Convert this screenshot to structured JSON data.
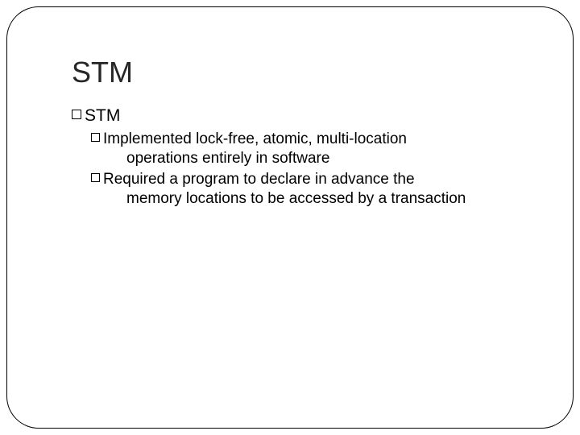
{
  "slide": {
    "title": "STM",
    "title_color": "#262626",
    "title_fontsize": 36,
    "border_color": "#000000",
    "border_radius": 40,
    "background": "#ffffff",
    "body_color": "#000000",
    "l1_fontsize": 21,
    "l2_fontsize": 19,
    "bullets": {
      "l1_label": "STM",
      "l2a_first": " Implemented lock-free, atomic, multi-location",
      "l2a_cont": "operations entirely in software",
      "l2b_first": "Required a program to declare in advance the",
      "l2b_cont": "memory locations to be accessed by a transaction"
    }
  }
}
